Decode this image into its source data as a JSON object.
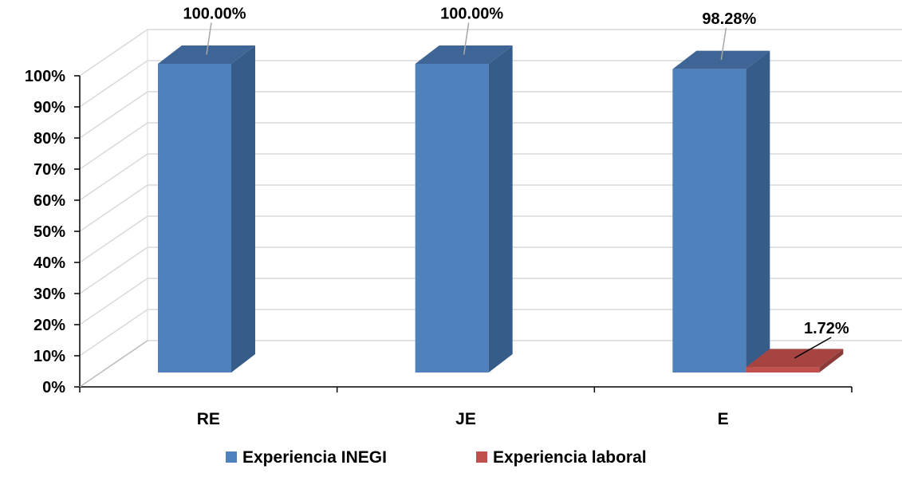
{
  "chart_data": {
    "type": "bar",
    "style": "3d-clustered-column",
    "categories": [
      "RE",
      "JE",
      "E"
    ],
    "series": [
      {
        "name": "Experiencia INEGI",
        "values": [
          100.0,
          100.0,
          98.28
        ],
        "labels": [
          "100.00%",
          "100.00%",
          "98.28%"
        ],
        "color": "#4F81BD",
        "side_color": "#365C8A",
        "top_color": "#3E6596"
      },
      {
        "name": "Experiencia laboral",
        "values": [
          null,
          null,
          1.72
        ],
        "labels": [
          "",
          "",
          "1.72%"
        ],
        "color": "#C0504D",
        "side_color": "#8C3A38",
        "top_color": "#A64442"
      }
    ],
    "y_ticks": [
      "0%",
      "10%",
      "20%",
      "30%",
      "40%",
      "50%",
      "60%",
      "70%",
      "80%",
      "90%",
      "100%"
    ],
    "ylim": [
      0,
      100
    ],
    "grid": true,
    "legend": "bottom"
  }
}
